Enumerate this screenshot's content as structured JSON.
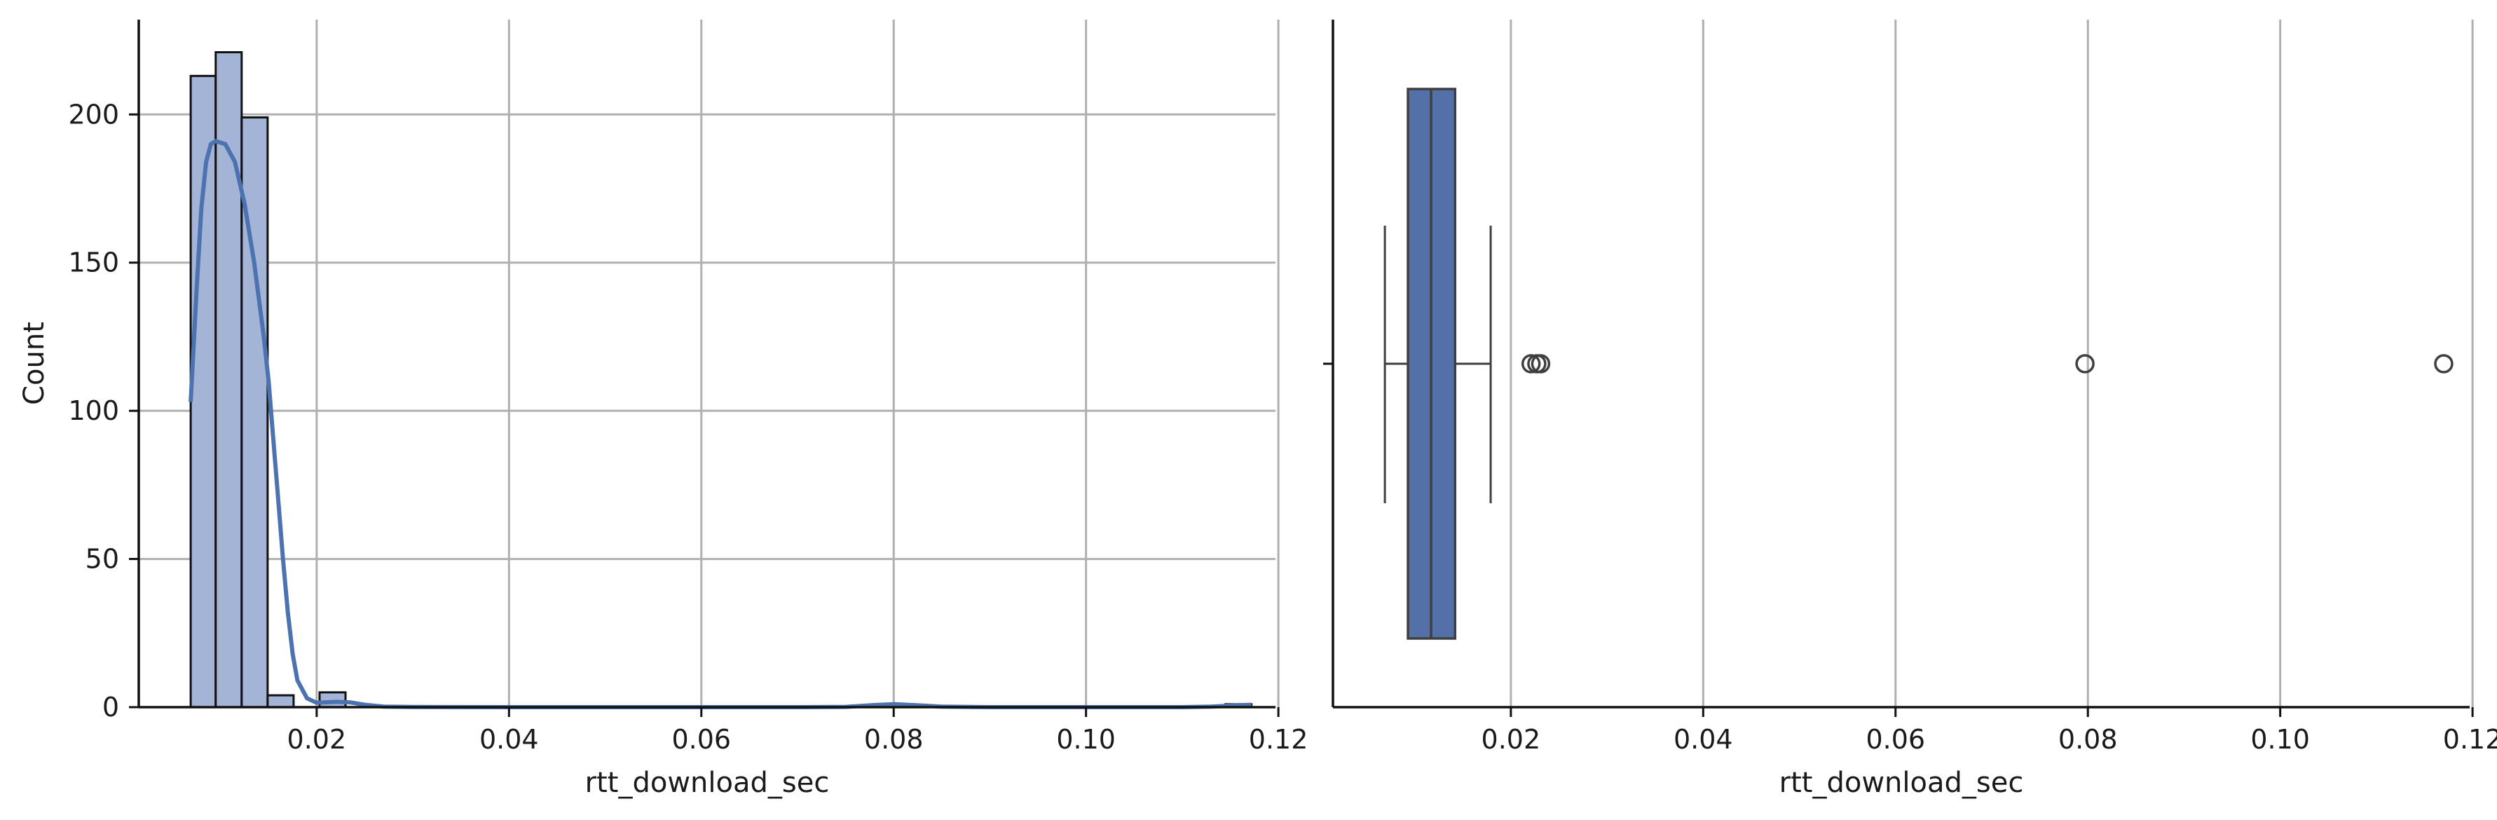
{
  "chart_data": [
    {
      "type": "histogram",
      "xlabel": "rtt_download_sec",
      "ylabel": "Count",
      "xlim": [
        0.0015,
        0.1197
      ],
      "ylim": [
        0,
        232
      ],
      "x_ticks": [
        {
          "value": 0.02,
          "label": "0.02"
        },
        {
          "value": 0.04,
          "label": "0.04"
        },
        {
          "value": 0.06,
          "label": "0.06"
        },
        {
          "value": 0.08,
          "label": "0.08"
        },
        {
          "value": 0.1,
          "label": "0.10"
        },
        {
          "value": 0.12,
          "label": "0.12"
        }
      ],
      "y_ticks": [
        {
          "value": 0,
          "label": "0"
        },
        {
          "value": 50,
          "label": "50"
        },
        {
          "value": 100,
          "label": "100"
        },
        {
          "value": 150,
          "label": "150"
        },
        {
          "value": 200,
          "label": "200"
        }
      ],
      "grid": true,
      "bar_color": "#a3b4d6",
      "kde_color": "#4c72b0",
      "bins": [
        {
          "x0": 0.0069,
          "x1": 0.0095,
          "count": 213
        },
        {
          "x0": 0.0095,
          "x1": 0.0122,
          "count": 221
        },
        {
          "x0": 0.0122,
          "x1": 0.0149,
          "count": 199
        },
        {
          "x0": 0.0149,
          "x1": 0.0176,
          "count": 4
        },
        {
          "x0": 0.0203,
          "x1": 0.023,
          "count": 5
        },
        {
          "x0": 0.078,
          "x1": 0.081,
          "count": 1
        },
        {
          "x0": 0.1145,
          "x1": 0.1172,
          "count": 1
        }
      ],
      "kde": {
        "x": [
          0.0069,
          0.0075,
          0.008,
          0.0085,
          0.009,
          0.0095,
          0.0105,
          0.0115,
          0.0125,
          0.0135,
          0.0145,
          0.015,
          0.0155,
          0.016,
          0.0165,
          0.017,
          0.0175,
          0.018,
          0.019,
          0.02,
          0.022,
          0.0235,
          0.025,
          0.027,
          0.03,
          0.04,
          0.05,
          0.06,
          0.07,
          0.075,
          0.078,
          0.08,
          0.082,
          0.085,
          0.09,
          0.1,
          0.11,
          0.113,
          0.1155,
          0.1172
        ],
        "y": [
          103,
          140,
          168,
          184,
          190,
          191,
          190,
          184,
          170,
          150,
          125,
          110,
          90,
          70,
          50,
          32,
          18,
          9,
          3,
          1.5,
          1.8,
          1.6,
          0.8,
          0.2,
          0.05,
          0,
          0,
          0,
          0,
          0.1,
          0.7,
          1.0,
          0.7,
          0.2,
          0,
          0,
          0,
          0.2,
          0.6,
          0.8
        ]
      }
    },
    {
      "type": "boxplot",
      "xlabel": "rtt_download_sec",
      "xlim": [
        0.0015,
        0.1197
      ],
      "x_ticks": [
        {
          "value": 0.02,
          "label": "0.02"
        },
        {
          "value": 0.04,
          "label": "0.04"
        },
        {
          "value": 0.06,
          "label": "0.06"
        },
        {
          "value": 0.08,
          "label": "0.08"
        },
        {
          "value": 0.1,
          "label": "0.10"
        },
        {
          "value": 0.12,
          "label": "0.12"
        }
      ],
      "grid": true,
      "box_color": "#5470a8",
      "whisker_low": 0.0069,
      "q1": 0.0093,
      "median": 0.0117,
      "q3": 0.0142,
      "whisker_high": 0.0179,
      "outliers": [
        0.0221,
        0.0227,
        0.0231,
        0.0797,
        0.117
      ]
    }
  ]
}
